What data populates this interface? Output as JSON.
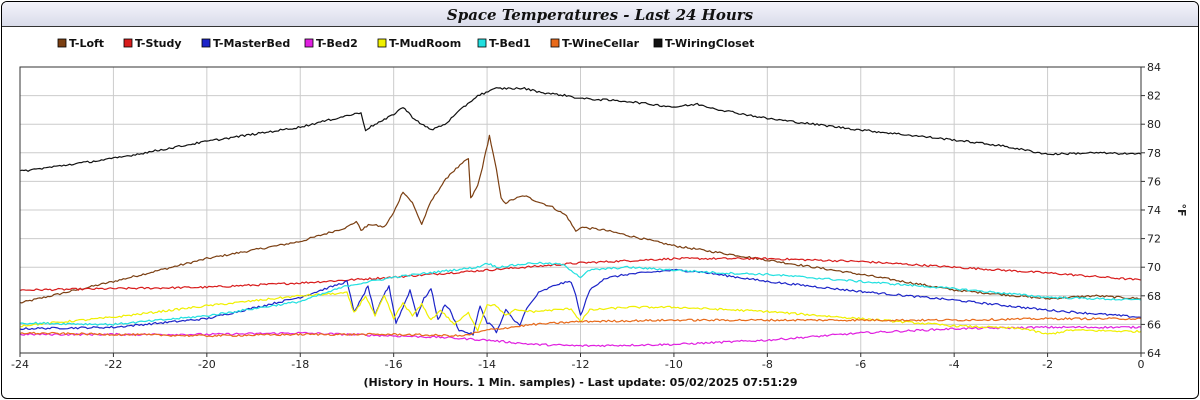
{
  "chart_data": {
    "type": "line",
    "title": "Space Temperatures - Last 24 Hours",
    "xlabel": "(History in Hours. 1 Min. samples) - Last update: 05/02/2025 07:51:29",
    "ylabel": "°F",
    "xlim": [
      -24,
      0
    ],
    "ylim": [
      64,
      84
    ],
    "xticks": [
      -24,
      -22,
      -20,
      -18,
      -16,
      -14,
      -12,
      -10,
      -8,
      -6,
      -4,
      -2,
      0
    ],
    "yticks": [
      64,
      66,
      68,
      70,
      72,
      74,
      76,
      78,
      80,
      82,
      84
    ],
    "grid": true,
    "legend_position": "top",
    "series": [
      {
        "name": "T-Loft",
        "color": "#7b3f12",
        "points": [
          [
            -24,
            67.5
          ],
          [
            -22,
            69.0
          ],
          [
            -20,
            70.6
          ],
          [
            -18,
            71.8
          ],
          [
            -17,
            72.8
          ],
          [
            -16.8,
            73.2
          ],
          [
            -16.7,
            72.6
          ],
          [
            -16.5,
            73.0
          ],
          [
            -16.2,
            72.8
          ],
          [
            -16.0,
            73.8
          ],
          [
            -15.8,
            75.3
          ],
          [
            -15.6,
            74.5
          ],
          [
            -15.4,
            73.0
          ],
          [
            -15.2,
            74.6
          ],
          [
            -15.0,
            75.6
          ],
          [
            -14.8,
            76.5
          ],
          [
            -14.4,
            77.6
          ],
          [
            -14.35,
            74.8
          ],
          [
            -14.2,
            75.7
          ],
          [
            -14.1,
            77.0
          ],
          [
            -13.95,
            79.2
          ],
          [
            -13.8,
            76.8
          ],
          [
            -13.7,
            74.8
          ],
          [
            -13.6,
            74.5
          ],
          [
            -13.4,
            74.8
          ],
          [
            -13.2,
            75.0
          ],
          [
            -13.0,
            74.7
          ],
          [
            -12.6,
            74.2
          ],
          [
            -12.3,
            73.6
          ],
          [
            -12.1,
            72.5
          ],
          [
            -12.0,
            72.8
          ],
          [
            -11.5,
            72.6
          ],
          [
            -10.0,
            71.5
          ],
          [
            -8.0,
            70.5
          ],
          [
            -6.0,
            69.5
          ],
          [
            -4.0,
            68.4
          ],
          [
            -2.0,
            67.8
          ],
          [
            -1.0,
            68.0
          ],
          [
            0,
            67.8
          ]
        ]
      },
      {
        "name": "T-Study",
        "color": "#d81c1c",
        "points": [
          [
            -24,
            68.4
          ],
          [
            -20,
            68.6
          ],
          [
            -18,
            68.9
          ],
          [
            -16,
            69.3
          ],
          [
            -14,
            69.8
          ],
          [
            -12,
            70.3
          ],
          [
            -10,
            70.6
          ],
          [
            -8,
            70.6
          ],
          [
            -6,
            70.4
          ],
          [
            -4,
            70.0
          ],
          [
            -2,
            69.6
          ],
          [
            0,
            69.1
          ]
        ]
      },
      {
        "name": "T-MasterBed",
        "color": "#1c24c8",
        "points": [
          [
            -24,
            65.7
          ],
          [
            -22,
            65.8
          ],
          [
            -20,
            66.4
          ],
          [
            -18,
            67.9
          ],
          [
            -17,
            69.0
          ],
          [
            -16.85,
            66.9
          ],
          [
            -16.7,
            67.7
          ],
          [
            -16.55,
            68.7
          ],
          [
            -16.4,
            66.6
          ],
          [
            -16.25,
            67.8
          ],
          [
            -16.1,
            68.7
          ],
          [
            -15.95,
            66.1
          ],
          [
            -15.8,
            67.2
          ],
          [
            -15.65,
            68.4
          ],
          [
            -15.5,
            66.6
          ],
          [
            -15.35,
            67.8
          ],
          [
            -15.2,
            68.5
          ],
          [
            -15.05,
            66.3
          ],
          [
            -14.9,
            67.4
          ],
          [
            -14.8,
            67.0
          ],
          [
            -14.6,
            65.6
          ],
          [
            -14.3,
            65.3
          ],
          [
            -14.15,
            67.3
          ],
          [
            -14.0,
            66.1
          ],
          [
            -13.9,
            66.0
          ],
          [
            -13.8,
            65.4
          ],
          [
            -13.6,
            67.0
          ],
          [
            -13.4,
            66.2
          ],
          [
            -13.3,
            66.0
          ],
          [
            -13.15,
            67.1
          ],
          [
            -12.9,
            68.2
          ],
          [
            -12.5,
            68.8
          ],
          [
            -12.2,
            69.0
          ],
          [
            -12.1,
            68.0
          ],
          [
            -12.0,
            66.6
          ],
          [
            -11.8,
            68.4
          ],
          [
            -11.5,
            69.2
          ],
          [
            -11.0,
            69.5
          ],
          [
            -10.0,
            69.8
          ],
          [
            -9.5,
            69.7
          ],
          [
            -8.0,
            69.0
          ],
          [
            -6.0,
            68.3
          ],
          [
            -4.0,
            67.7
          ],
          [
            -2.0,
            67.0
          ],
          [
            0,
            66.5
          ]
        ]
      },
      {
        "name": "T-Bed2",
        "color": "#e020e0",
        "points": [
          [
            -24,
            65.3
          ],
          [
            -20,
            65.3
          ],
          [
            -18,
            65.4
          ],
          [
            -16,
            65.2
          ],
          [
            -15,
            65.1
          ],
          [
            -14,
            64.9
          ],
          [
            -13,
            64.6
          ],
          [
            -12,
            64.5
          ],
          [
            -10,
            64.6
          ],
          [
            -8,
            64.9
          ],
          [
            -6,
            65.4
          ],
          [
            -4,
            65.7
          ],
          [
            -2,
            65.8
          ],
          [
            0,
            65.8
          ]
        ]
      },
      {
        "name": "T-MudRoom",
        "color": "#f0f000",
        "points": [
          [
            -24,
            65.9
          ],
          [
            -22,
            66.5
          ],
          [
            -20,
            67.3
          ],
          [
            -18,
            68.0
          ],
          [
            -17,
            68.2
          ],
          [
            -16.85,
            66.8
          ],
          [
            -16.6,
            68.0
          ],
          [
            -16.4,
            66.6
          ],
          [
            -16.2,
            68.0
          ],
          [
            -16.0,
            66.4
          ],
          [
            -15.8,
            67.5
          ],
          [
            -15.6,
            66.6
          ],
          [
            -15.4,
            67.4
          ],
          [
            -15.2,
            66.3
          ],
          [
            -15.0,
            67.0
          ],
          [
            -14.7,
            66.0
          ],
          [
            -14.4,
            66.8
          ],
          [
            -14.2,
            65.6
          ],
          [
            -14.0,
            67.4
          ],
          [
            -13.8,
            67.3
          ],
          [
            -13.6,
            66.6
          ],
          [
            -13.4,
            67.0
          ],
          [
            -13.0,
            66.9
          ],
          [
            -12.2,
            67.1
          ],
          [
            -12.0,
            66.2
          ],
          [
            -11.8,
            67.0
          ],
          [
            -11.0,
            67.2
          ],
          [
            -10.0,
            67.2
          ],
          [
            -8.0,
            66.9
          ],
          [
            -6.0,
            66.4
          ],
          [
            -4.0,
            65.9
          ],
          [
            -2.5,
            65.7
          ],
          [
            -2.0,
            65.3
          ],
          [
            -1.5,
            65.6
          ],
          [
            0,
            65.5
          ]
        ]
      },
      {
        "name": "T-Bed1",
        "color": "#22e0e0",
        "points": [
          [
            -24,
            66.1
          ],
          [
            -22,
            66.0
          ],
          [
            -20,
            66.6
          ],
          [
            -18,
            67.6
          ],
          [
            -17,
            68.7
          ],
          [
            -16,
            69.3
          ],
          [
            -15,
            69.7
          ],
          [
            -14.2,
            70.0
          ],
          [
            -14.0,
            70.3
          ],
          [
            -13.8,
            70.0
          ],
          [
            -13.0,
            70.3
          ],
          [
            -12.4,
            70.2
          ],
          [
            -12.2,
            69.8
          ],
          [
            -12.0,
            69.3
          ],
          [
            -11.8,
            69.8
          ],
          [
            -11.0,
            70.0
          ],
          [
            -10.0,
            69.8
          ],
          [
            -9.0,
            69.6
          ],
          [
            -8.0,
            69.5
          ],
          [
            -6.0,
            69.0
          ],
          [
            -4.0,
            68.5
          ],
          [
            -2.0,
            67.9
          ],
          [
            0,
            67.7
          ]
        ]
      },
      {
        "name": "T-WineCellar",
        "color": "#e86a1a",
        "points": [
          [
            -24,
            65.4
          ],
          [
            -22,
            65.3
          ],
          [
            -20,
            65.2
          ],
          [
            -18,
            65.3
          ],
          [
            -16,
            65.3
          ],
          [
            -14.5,
            65.2
          ],
          [
            -14.0,
            65.6
          ],
          [
            -13,
            66.0
          ],
          [
            -12,
            66.2
          ],
          [
            -10,
            66.3
          ],
          [
            -8,
            66.3
          ],
          [
            -6,
            66.3
          ],
          [
            -4,
            66.3
          ],
          [
            -2,
            66.4
          ],
          [
            0,
            66.4
          ]
        ]
      },
      {
        "name": "T-WiringCloset",
        "color": "#111111",
        "points": [
          [
            -24,
            76.7
          ],
          [
            -22,
            77.6
          ],
          [
            -20,
            78.8
          ],
          [
            -18,
            79.8
          ],
          [
            -17,
            80.6
          ],
          [
            -16.7,
            80.8
          ],
          [
            -16.6,
            79.6
          ],
          [
            -16.4,
            80.0
          ],
          [
            -16.2,
            80.3
          ],
          [
            -16.0,
            80.7
          ],
          [
            -15.8,
            81.2
          ],
          [
            -15.6,
            80.5
          ],
          [
            -15.4,
            80.0
          ],
          [
            -15.2,
            79.6
          ],
          [
            -14.9,
            80.0
          ],
          [
            -14.5,
            81.2
          ],
          [
            -14.2,
            82.0
          ],
          [
            -13.8,
            82.5
          ],
          [
            -13.2,
            82.5
          ],
          [
            -12.8,
            82.2
          ],
          [
            -12.3,
            82.0
          ],
          [
            -12.0,
            81.8
          ],
          [
            -11.0,
            81.6
          ],
          [
            -10.0,
            81.2
          ],
          [
            -9.5,
            81.4
          ],
          [
            -9.0,
            81.0
          ],
          [
            -8.0,
            80.4
          ],
          [
            -6.0,
            79.6
          ],
          [
            -4.0,
            78.9
          ],
          [
            -3.0,
            78.5
          ],
          [
            -2.0,
            77.9
          ],
          [
            -1.0,
            78.0
          ],
          [
            0,
            77.9
          ]
        ]
      }
    ]
  }
}
